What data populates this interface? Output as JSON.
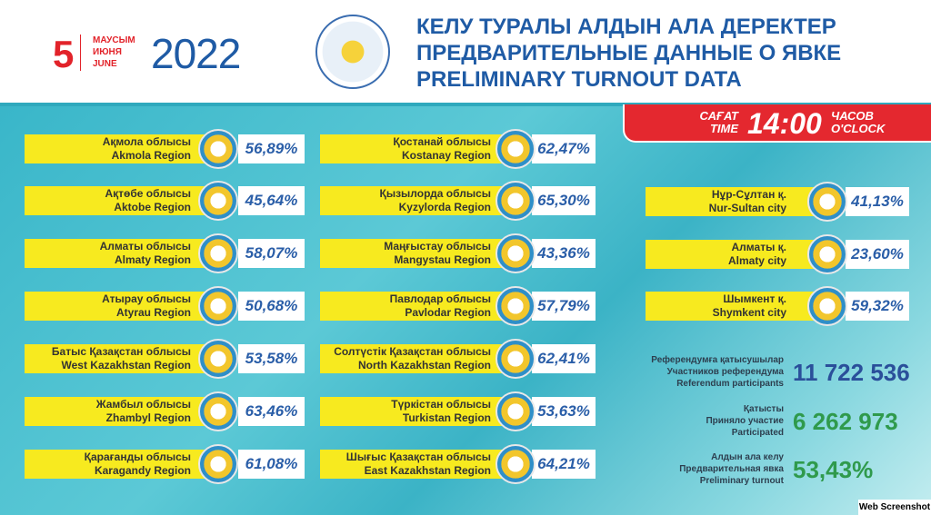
{
  "header": {
    "day": "5",
    "months": [
      "МАУСЫМ",
      "ИЮНЯ",
      "JUNE"
    ],
    "year": "2022",
    "titles": [
      "КЕЛУ ТУРАЛЫ АЛДЫН АЛА ДЕРЕКТЕР",
      "ПРЕДВАРИТЕЛЬНЫЕ ДАННЫЕ О ЯВКЕ",
      "PRELIMINARY TURNOUT DATA"
    ]
  },
  "time": {
    "left": [
      "САҒАТ",
      "TIME"
    ],
    "value": "14:00",
    "right": [
      "ЧАСОВ",
      "O'CLOCK"
    ]
  },
  "columns": [
    [
      {
        "kz": "Ақмола облысы",
        "en": "Akmola Region",
        "pct": "56,89%"
      },
      {
        "kz": "Ақтөбе облысы",
        "en": "Aktobe Region",
        "pct": "45,64%"
      },
      {
        "kz": "Алматы облысы",
        "en": "Almaty Region",
        "pct": "58,07%"
      },
      {
        "kz": "Атырау облысы",
        "en": "Atyrau Region",
        "pct": "50,68%"
      },
      {
        "kz": "Батыс Қазақстан облысы",
        "en": "West Kazakhstan Region",
        "pct": "53,58%"
      },
      {
        "kz": "Жамбыл облысы",
        "en": "Zhambyl Region",
        "pct": "63,46%"
      },
      {
        "kz": "Қарағанды облысы",
        "en": "Karagandy Region",
        "pct": "61,08%"
      }
    ],
    [
      {
        "kz": "Қостанай облысы",
        "en": "Kostanay Region",
        "pct": "62,47%"
      },
      {
        "kz": "Қызылорда облысы",
        "en": "Kyzylorda Region",
        "pct": "65,30%"
      },
      {
        "kz": "Маңғыстау облысы",
        "en": "Mangystau Region",
        "pct": "43,36%"
      },
      {
        "kz": "Павлодар облысы",
        "en": "Pavlodar Region",
        "pct": "57,79%"
      },
      {
        "kz": "Солтүстік Қазақстан облысы",
        "en": "North Kazakhstan Region",
        "pct": "62,41%"
      },
      {
        "kz": "Түркістан облысы",
        "en": "Turkistan Region",
        "pct": "53,63%"
      },
      {
        "kz": "Шығыс Қазақстан облысы",
        "en": "East Kazakhstan Region",
        "pct": "64,21%"
      }
    ],
    [
      {
        "kz": "Нұр-Сұлтан қ.",
        "en": "Nur-Sultan city",
        "pct": "41,13%"
      },
      {
        "kz": "Алматы қ.",
        "en": "Almaty city",
        "pct": "23,60%"
      },
      {
        "kz": "Шымкент қ.",
        "en": "Shymkent city",
        "pct": "59,32%"
      }
    ]
  ],
  "stats": [
    {
      "labels": [
        "Референдумға қатысушылар",
        "Участников референдума",
        "Referendum participants"
      ],
      "value": "11 722 536",
      "color": "#2a4f9a"
    },
    {
      "labels": [
        "Қатысты",
        "Приняло участие",
        "Participated"
      ],
      "value": "6 262 973",
      "color": "#2f9a4c"
    },
    {
      "labels": [
        "Алдын ала келу",
        "Предварительная явка",
        "Preliminary turnout"
      ],
      "value": "53,43%",
      "color": "#2f9a4c"
    }
  ],
  "watermark": "Web Screenshot",
  "colors": {
    "yellow": "#f7ea1f",
    "blue": "#1f5ba5",
    "red": "#e4282f",
    "teal": "#39b6c9"
  }
}
